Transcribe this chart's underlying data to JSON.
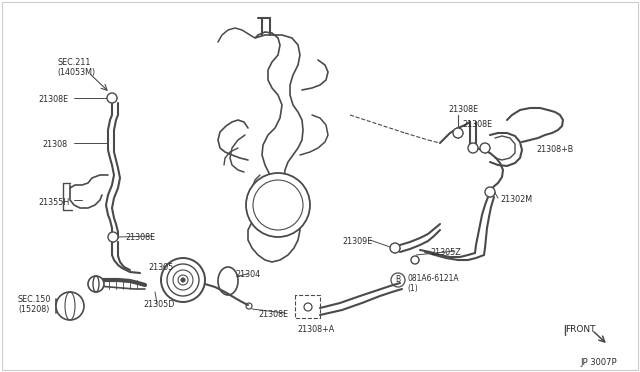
{
  "bg_color": "#ffffff",
  "line_color": "#4a4a4a",
  "text_color": "#2a2a2a",
  "border_color": "#cccccc",
  "labels": {
    "SEC_211": "SEC.211\n(14053M)",
    "21308E_tl": "21308E",
    "21308": "21308",
    "21355H": "21355H",
    "21308E_ml": "21308E",
    "21305": "21305",
    "SEC_150": "SEC.150\n(15208)",
    "21305D": "21305D",
    "21304": "21304",
    "21308E_bm": "21308E",
    "21308pA": "21308+A",
    "21309E": "21309E",
    "21308E_tr1": "21308E",
    "21308E_tr2": "21308E",
    "21308pB": "21308+B",
    "21302M": "21302M",
    "21305Z": "21305Z",
    "081A6": "081A6-6121A\n(1)",
    "FRONT": "FRONT"
  },
  "diagram_number": "JP 3007P"
}
